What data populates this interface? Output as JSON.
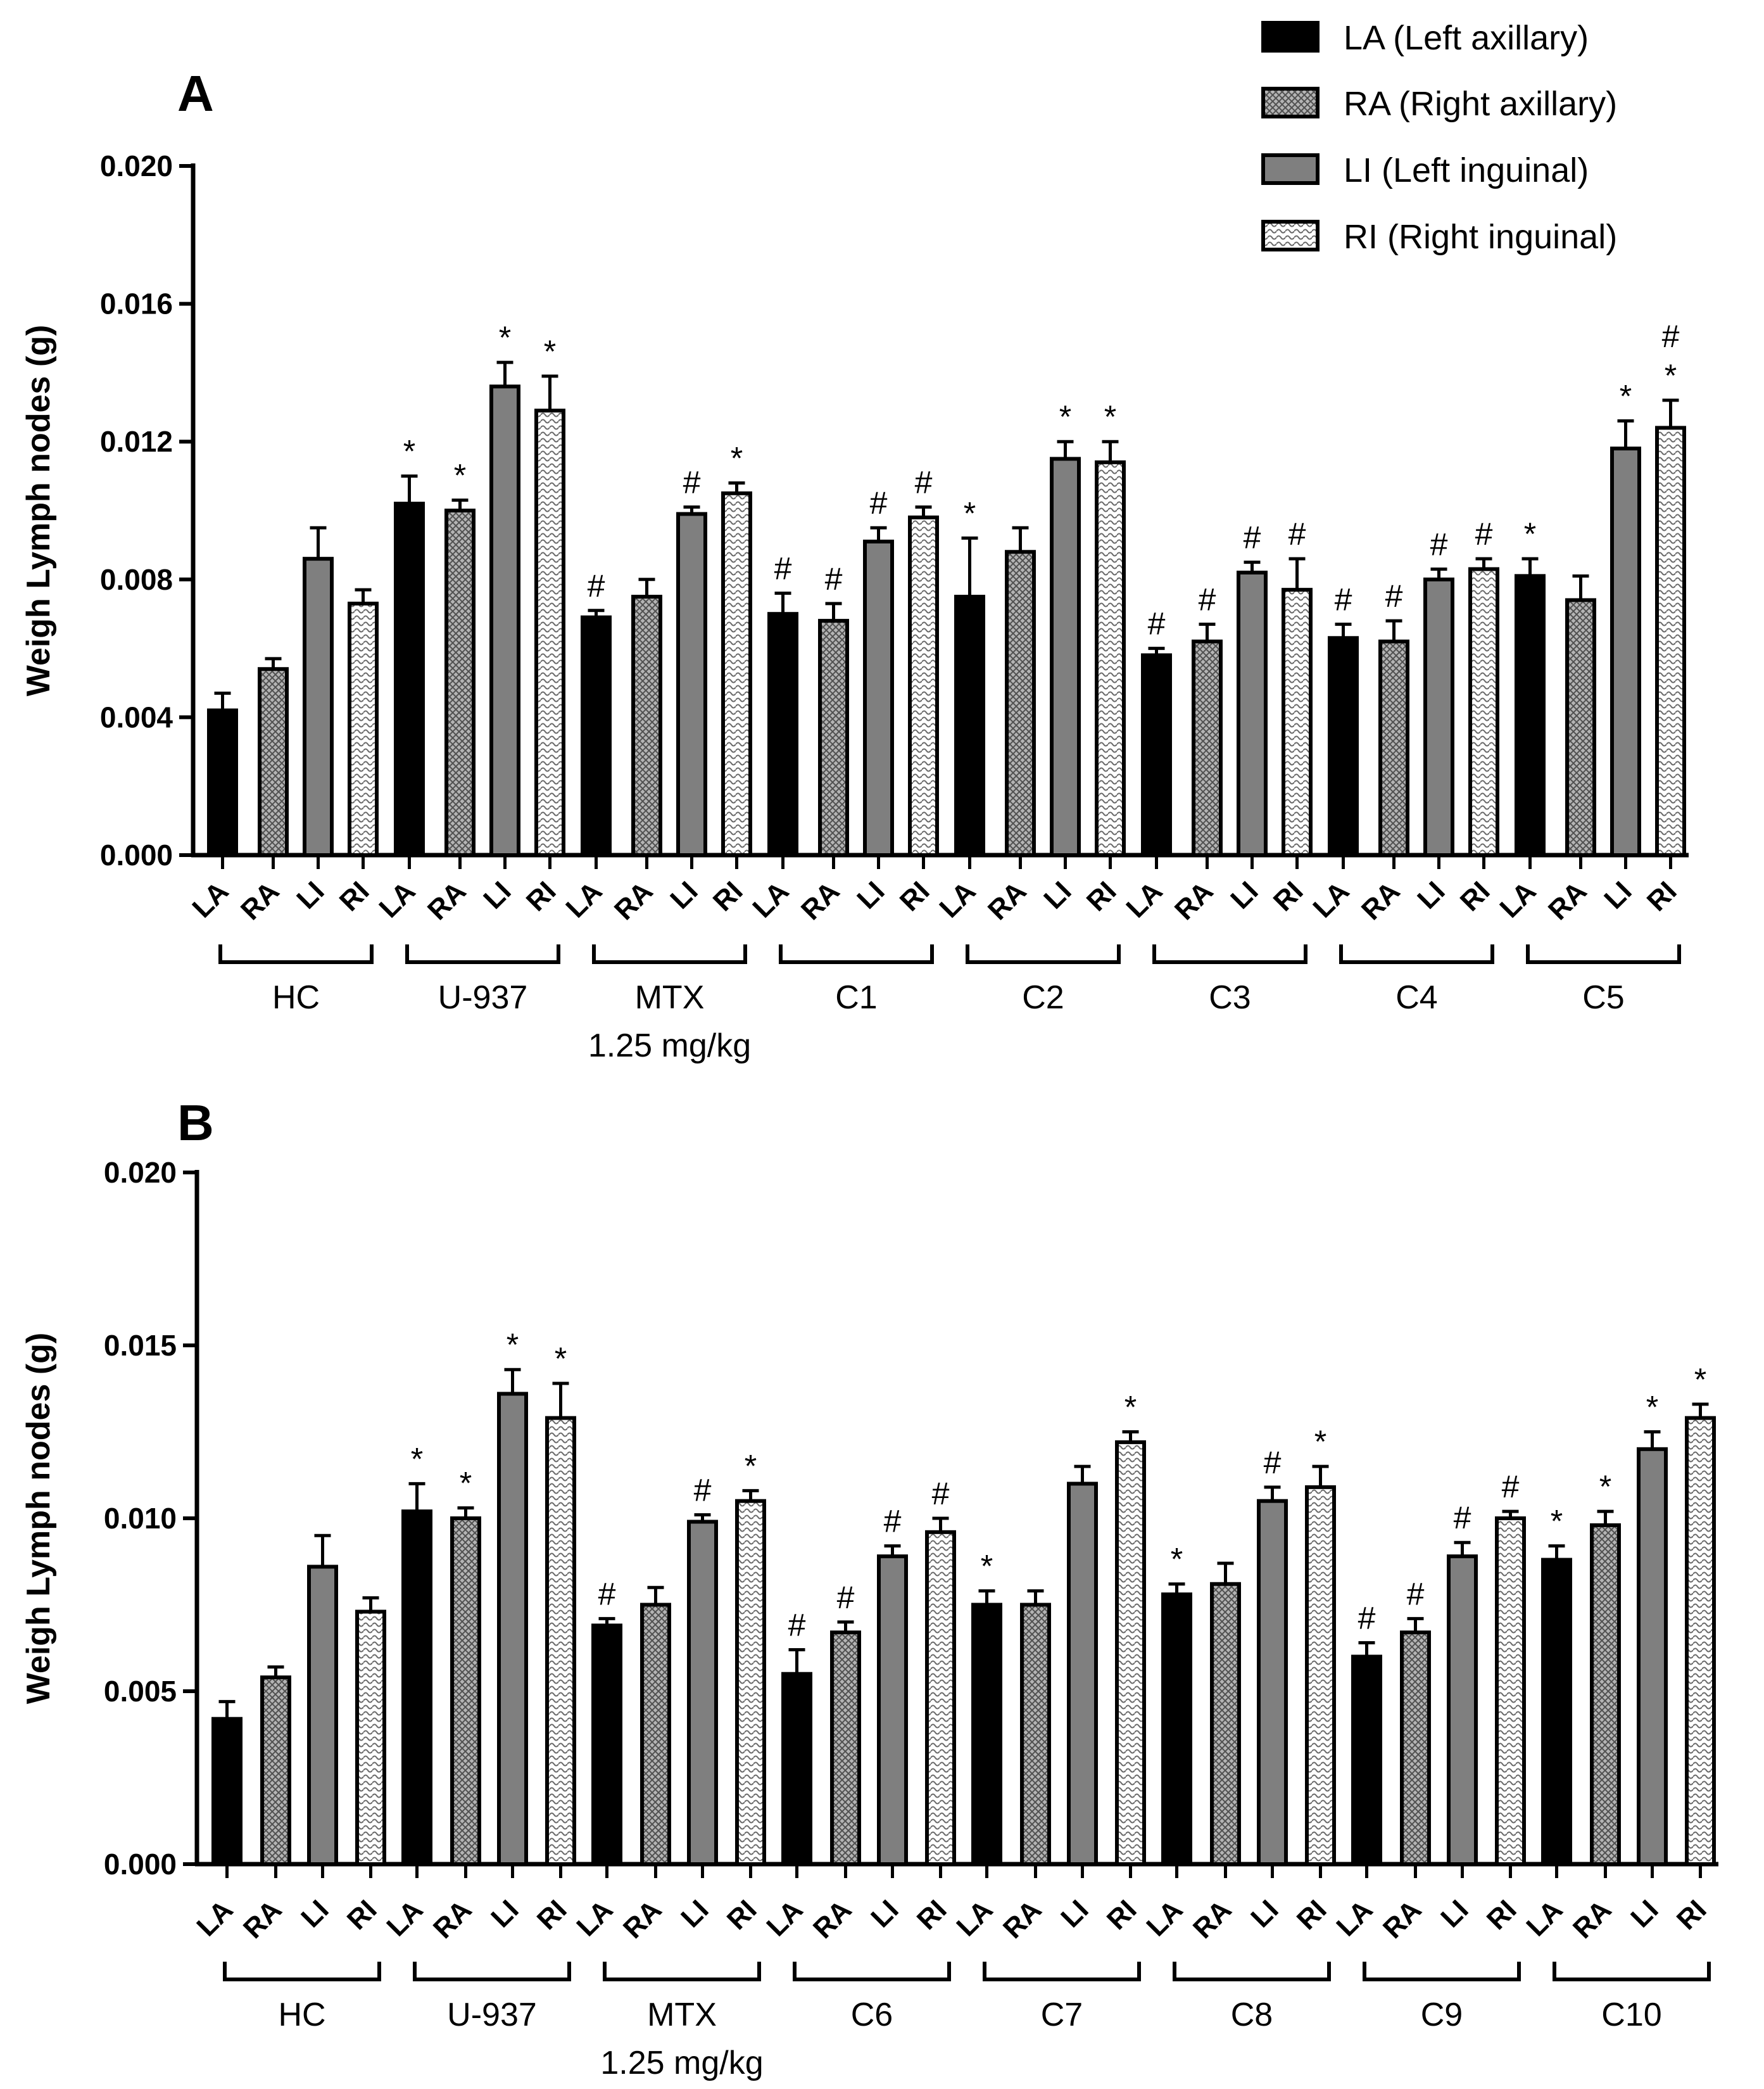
{
  "legend": [
    {
      "key": "LA",
      "label": "LA (Left axillary)",
      "fill": "black"
    },
    {
      "key": "RA",
      "label": "RA (Right axillary)",
      "fill": "crosshatch"
    },
    {
      "key": "LI",
      "label": "LI (Left inguinal)",
      "fill": "gray"
    },
    {
      "key": "RI",
      "label": "RI (Right inguinal)",
      "fill": "dotted"
    }
  ],
  "colors": {
    "black": "#000000",
    "gray": "#7f7f7f",
    "crosshatch_bg": "#b0b0b0",
    "dotted_bg": "#ffffff"
  },
  "bar_labels": [
    "LA",
    "RA",
    "LI",
    "RI"
  ],
  "chart_data": [
    {
      "panel": "A",
      "type": "bar",
      "ylabel": "Weigh Lymph nodes (g)",
      "ylim": [
        0,
        0.02
      ],
      "yticks": [
        "0.000",
        "0.004",
        "0.008",
        "0.012",
        "0.016",
        "0.020"
      ],
      "groups": [
        {
          "name": "HC",
          "sub": "",
          "values": [
            0.0042,
            0.0054,
            0.0086,
            0.0073
          ],
          "errors": [
            0.0005,
            0.0003,
            0.0009,
            0.0004
          ],
          "marks": [
            "",
            "",
            "",
            ""
          ]
        },
        {
          "name": "U-937",
          "sub": "",
          "values": [
            0.0102,
            0.01,
            0.0136,
            0.0129
          ],
          "errors": [
            0.0008,
            0.0003,
            0.0007,
            0.001
          ],
          "marks": [
            "*",
            "*",
            "*",
            "*"
          ]
        },
        {
          "name": "MTX",
          "sub": "1.25 mg/kg",
          "values": [
            0.0069,
            0.0075,
            0.0099,
            0.0105
          ],
          "errors": [
            0.0002,
            0.0005,
            0.0002,
            0.0003
          ],
          "marks": [
            "#",
            "",
            "#",
            "*"
          ]
        },
        {
          "name": "C1",
          "sub": "",
          "values": [
            0.007,
            0.0068,
            0.0091,
            0.0098
          ],
          "errors": [
            0.0006,
            0.0005,
            0.0004,
            0.0003
          ],
          "marks": [
            "#",
            "#",
            "#",
            "#"
          ]
        },
        {
          "name": "C2",
          "sub": "",
          "values": [
            0.0075,
            0.0088,
            0.0115,
            0.0114
          ],
          "errors": [
            0.0017,
            0.0007,
            0.0005,
            0.0006
          ],
          "marks": [
            "*",
            "",
            "*",
            "*"
          ]
        },
        {
          "name": "C3",
          "sub": "",
          "values": [
            0.0058,
            0.0062,
            0.0082,
            0.0077
          ],
          "errors": [
            0.0002,
            0.0005,
            0.0003,
            0.0009
          ],
          "marks": [
            "#",
            "#",
            "#",
            "#"
          ]
        },
        {
          "name": "C4",
          "sub": "",
          "values": [
            0.0063,
            0.0062,
            0.008,
            0.0083
          ],
          "errors": [
            0.0004,
            0.0006,
            0.0003,
            0.0003
          ],
          "marks": [
            "#",
            "#",
            "#",
            "#"
          ]
        },
        {
          "name": "C5",
          "sub": "",
          "values": [
            0.0081,
            0.0074,
            0.0118,
            0.0124
          ],
          "errors": [
            0.0005,
            0.0007,
            0.0008,
            0.0008
          ],
          "marks": [
            "*",
            "",
            "*",
            "#\n*"
          ]
        }
      ]
    },
    {
      "panel": "B",
      "type": "bar",
      "ylabel": "Weigh Lymph nodes (g)",
      "ylim": [
        0,
        0.02
      ],
      "yticks": [
        "0.000",
        "0.005",
        "0.010",
        "0.015",
        "0.020"
      ],
      "groups": [
        {
          "name": "HC",
          "sub": "",
          "values": [
            0.0042,
            0.0054,
            0.0086,
            0.0073
          ],
          "errors": [
            0.0005,
            0.0003,
            0.0009,
            0.0004
          ],
          "marks": [
            "",
            "",
            "",
            ""
          ]
        },
        {
          "name": "U-937",
          "sub": "",
          "values": [
            0.0102,
            0.01,
            0.0136,
            0.0129
          ],
          "errors": [
            0.0008,
            0.0003,
            0.0007,
            0.001
          ],
          "marks": [
            "*",
            "*",
            "*",
            "*"
          ]
        },
        {
          "name": "MTX",
          "sub": "1.25 mg/kg",
          "values": [
            0.0069,
            0.0075,
            0.0099,
            0.0105
          ],
          "errors": [
            0.0002,
            0.0005,
            0.0002,
            0.0003
          ],
          "marks": [
            "#",
            "",
            "#",
            "*"
          ]
        },
        {
          "name": "C6",
          "sub": "",
          "values": [
            0.0055,
            0.0067,
            0.0089,
            0.0096
          ],
          "errors": [
            0.0007,
            0.0003,
            0.0003,
            0.0004
          ],
          "marks": [
            "#",
            "#",
            "#",
            "#"
          ]
        },
        {
          "name": "C7",
          "sub": "",
          "values": [
            0.0075,
            0.0075,
            0.011,
            0.0122
          ],
          "errors": [
            0.0004,
            0.0004,
            0.0005,
            0.0003
          ],
          "marks": [
            "*",
            "",
            "",
            "*"
          ]
        },
        {
          "name": "C8",
          "sub": "",
          "values": [
            0.0078,
            0.0081,
            0.0105,
            0.0109
          ],
          "errors": [
            0.0003,
            0.0006,
            0.0004,
            0.0006
          ],
          "marks": [
            "*",
            "",
            "#",
            "*"
          ]
        },
        {
          "name": "C9",
          "sub": "",
          "values": [
            0.006,
            0.0067,
            0.0089,
            0.01
          ],
          "errors": [
            0.0004,
            0.0004,
            0.0004,
            0.0002
          ],
          "marks": [
            "#",
            "#",
            "#",
            "#"
          ]
        },
        {
          "name": "C10",
          "sub": "",
          "values": [
            0.0088,
            0.0098,
            0.012,
            0.0129
          ],
          "errors": [
            0.0004,
            0.0004,
            0.0005,
            0.0004
          ],
          "marks": [
            "*",
            "*",
            "*",
            "*"
          ]
        }
      ]
    }
  ]
}
